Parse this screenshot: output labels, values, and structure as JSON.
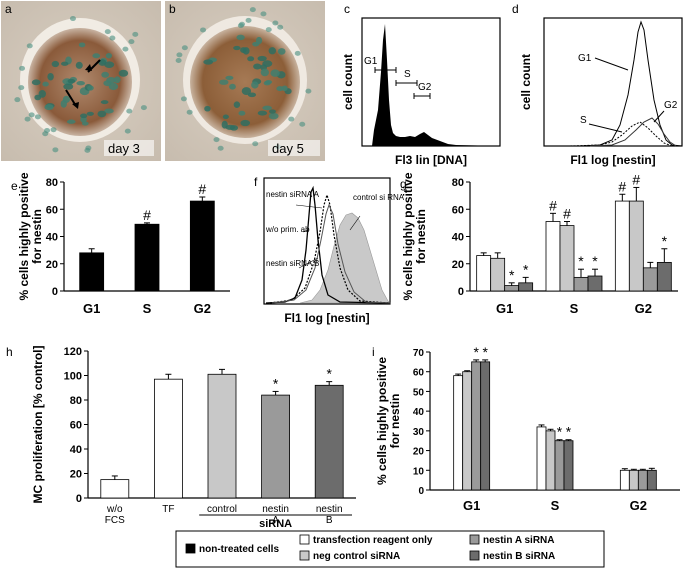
{
  "panels": {
    "a": {
      "letter": "a",
      "caption": "day 3"
    },
    "b": {
      "letter": "b",
      "caption": "day 5"
    },
    "c": {
      "letter": "c",
      "ylabel": "cell count",
      "xlabel": "Fl3 lin [DNA]",
      "gates": [
        "G1",
        "S",
        "G2"
      ]
    },
    "d": {
      "letter": "d",
      "ylabel": "cell count",
      "xlabel": "Fl1 log [nestin]",
      "labels": [
        "G1",
        "S",
        "G2"
      ]
    },
    "f": {
      "letter": "f",
      "xlabel": "Fl1 log [nestin]",
      "labels": {
        "nestin_a": "nestin siRNA A",
        "wo": "w/o prim. ab",
        "nestin_b": "nestin siRNA B",
        "control": "control si RNA"
      }
    }
  },
  "legend": {
    "items": [
      {
        "label": "non-treated cells",
        "color": "#000000"
      },
      {
        "label": "transfection reagent only",
        "color": "#ffffff"
      },
      {
        "label": "neg control siRNA",
        "color": "#c8c8c8"
      },
      {
        "label": "nestin A siRNA",
        "color": "#9a9a9a"
      },
      {
        "label": "nestin B siRNA",
        "color": "#6c6c6c"
      }
    ]
  },
  "chart_data": [
    {
      "panel": "e",
      "type": "bar",
      "ylabel": "% cells highly positive for nestin",
      "categories": [
        "G1",
        "S",
        "G2"
      ],
      "values": [
        28,
        49,
        66
      ],
      "errors": [
        3,
        1,
        3
      ],
      "markers": [
        "",
        "#",
        "#"
      ],
      "ylim": [
        0,
        80
      ],
      "yticks": [
        0,
        20,
        40,
        60,
        80
      ]
    },
    {
      "panel": "g",
      "type": "bar",
      "ylabel": "% cells highly positive for nestin",
      "categories": [
        "G1",
        "S",
        "G2"
      ],
      "series": [
        {
          "color": "#ffffff",
          "values": [
            26,
            51,
            66
          ],
          "errors": [
            2,
            6,
            5
          ],
          "markers": [
            "",
            "#",
            "#"
          ]
        },
        {
          "color": "#c8c8c8",
          "values": [
            24,
            48,
            66
          ],
          "errors": [
            4,
            3,
            10
          ],
          "markers": [
            "",
            "#",
            "#"
          ]
        },
        {
          "color": "#9a9a9a",
          "values": [
            4,
            10,
            17
          ],
          "errors": [
            2,
            6,
            4
          ],
          "markers": [
            "*",
            "*",
            ""
          ]
        },
        {
          "color": "#6c6c6c",
          "values": [
            6,
            11,
            21
          ],
          "errors": [
            4,
            5,
            10
          ],
          "markers": [
            "*",
            "*",
            "*"
          ]
        }
      ],
      "ylim": [
        0,
        80
      ],
      "yticks": [
        0,
        20,
        40,
        60,
        80
      ]
    },
    {
      "panel": "h",
      "type": "bar",
      "ylabel": "MC proliferation [% control]",
      "categories": [
        "w/o FCS",
        "TF",
        "control",
        "nestin A",
        "nestin B"
      ],
      "values": [
        15,
        97,
        101,
        84,
        92
      ],
      "errors": [
        3,
        4,
        4,
        3,
        3
      ],
      "colors": [
        "#ffffff",
        "#ffffff",
        "#c8c8c8",
        "#9a9a9a",
        "#6c6c6c"
      ],
      "markers": [
        "",
        "",
        "",
        "*",
        "*"
      ],
      "group_label": "siRNA",
      "ylim": [
        0,
        120
      ],
      "yticks": [
        0,
        20,
        40,
        60,
        80,
        100,
        120
      ]
    },
    {
      "panel": "i",
      "type": "bar",
      "ylabel": "% cells highly positive for nestin",
      "categories": [
        "G1",
        "S",
        "G2"
      ],
      "series": [
        {
          "color": "#ffffff",
          "values": [
            58,
            32,
            10
          ],
          "errors": [
            0.8,
            1,
            0.8
          ],
          "markers": [
            "",
            "",
            ""
          ]
        },
        {
          "color": "#c8c8c8",
          "values": [
            60,
            30,
            10
          ],
          "errors": [
            0.5,
            0.8,
            0.5
          ],
          "markers": [
            "",
            "",
            ""
          ]
        },
        {
          "color": "#9a9a9a",
          "values": [
            65,
            25,
            10
          ],
          "errors": [
            1,
            0.5,
            0.5
          ],
          "markers": [
            "*",
            "*",
            ""
          ]
        },
        {
          "color": "#6c6c6c",
          "values": [
            65,
            25,
            10
          ],
          "errors": [
            1,
            0.5,
            1
          ],
          "markers": [
            "*",
            "*",
            ""
          ]
        }
      ],
      "ylim": [
        0,
        70
      ],
      "yticks": [
        0,
        10,
        20,
        30,
        40,
        50,
        60,
        70
      ]
    }
  ]
}
